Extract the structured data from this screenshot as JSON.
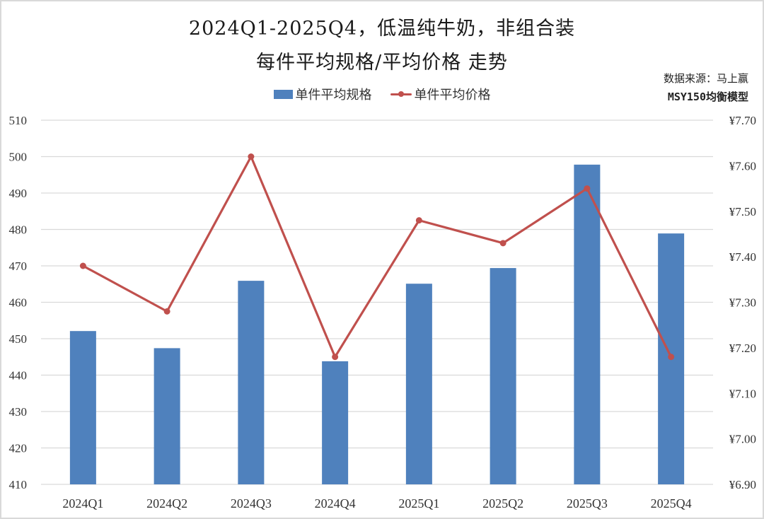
{
  "header": {
    "title_line1": "2024Q1-2025Q4，低温纯牛奶，非组合装",
    "title_line2": "每件平均规格/平均价格 走势"
  },
  "source": {
    "line1": "数据来源：马上赢",
    "line2": "MSY150均衡模型"
  },
  "legend": {
    "bar_label": "单件平均规格",
    "line_label": "单件平均价格"
  },
  "colors": {
    "bar": "#4f81bd",
    "line": "#c0504d",
    "grid": "#d9d9d9",
    "border": "#d9d9d9"
  },
  "chart_data": {
    "type": "bar",
    "title": "2024Q1-2025Q4，低温纯牛奶，非组合装 每件平均规格/平均价格 走势",
    "xlabel": "",
    "ylabel": "",
    "categories": [
      "2024Q1",
      "2024Q2",
      "2024Q3",
      "2024Q4",
      "2025Q1",
      "2025Q2",
      "2025Q3",
      "2025Q4"
    ],
    "series": [
      {
        "name": "单件平均规格",
        "type": "bar",
        "axis": "left",
        "values": [
          452.1,
          447.4,
          465.9,
          443.8,
          465.1,
          469.4,
          497.8,
          478.9
        ]
      },
      {
        "name": "单件平均价格",
        "type": "line",
        "axis": "right",
        "values": [
          7.38,
          7.28,
          7.62,
          7.18,
          7.48,
          7.43,
          7.55,
          7.18
        ]
      }
    ],
    "ylim": [
      410,
      510
    ],
    "y_ticks": [
      "510",
      "500",
      "490",
      "480",
      "470",
      "460",
      "450",
      "440",
      "430",
      "420",
      "410"
    ],
    "y2lim": [
      6.9,
      7.7
    ],
    "y2_ticks": [
      "¥7.70",
      "¥7.60",
      "¥7.50",
      "¥7.40",
      "¥7.30",
      "¥7.20",
      "¥7.10",
      "¥7.00",
      "¥6.90"
    ],
    "grid": true,
    "legend_position": "top"
  }
}
